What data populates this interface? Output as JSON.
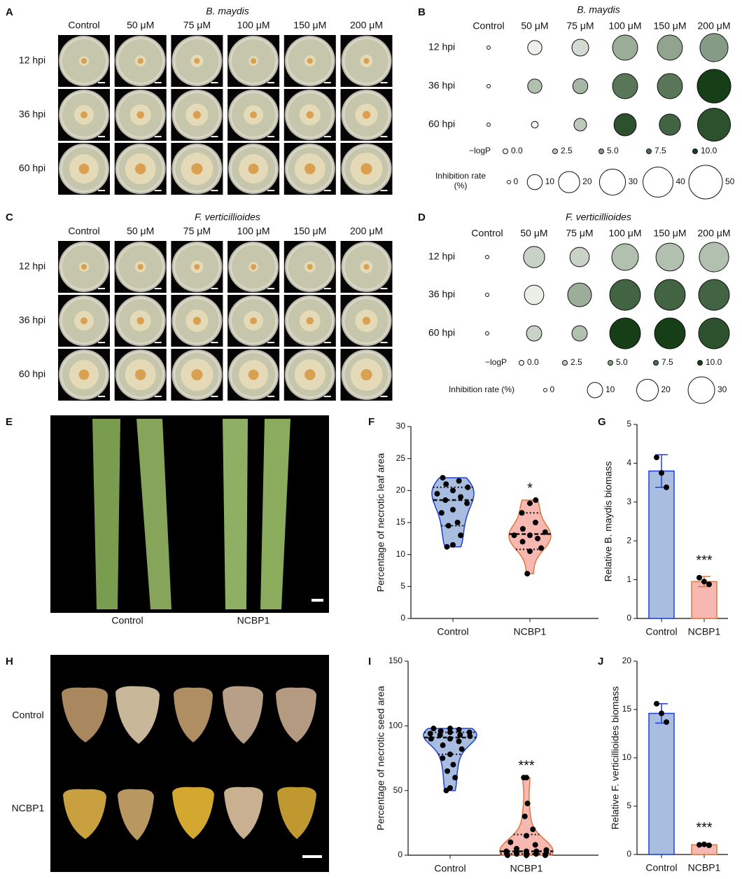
{
  "panel_labels": [
    "A",
    "B",
    "C",
    "D",
    "E",
    "F",
    "G",
    "H",
    "I",
    "J"
  ],
  "plates_a": {
    "title": "B. maydis",
    "columns": [
      "Control",
      "50 μM",
      "75 μM",
      "100 μM",
      "150 μM",
      "200 μM"
    ],
    "rows": [
      "12 hpi",
      "36 hpi",
      "60 hpi"
    ]
  },
  "plates_c": {
    "title": "F. verticillioides",
    "columns": [
      "Control",
      "50 μM",
      "75 μM",
      "100 μM",
      "150 μM",
      "200 μM"
    ],
    "rows": [
      "12 hpi",
      "36 hpi",
      "60 hpi"
    ]
  },
  "photo_e": {
    "labels": [
      "Control",
      "NCBP1"
    ]
  },
  "photo_h": {
    "rows": [
      "Control",
      "NCBP1"
    ]
  },
  "chart_data": [
    {
      "type": "bubble",
      "title": "B. maydis",
      "categories": [
        "Control",
        "50 μM",
        "75 μM",
        "100 μM",
        "150 μM",
        "200 μM"
      ],
      "series": [
        {
          "name": "12 hpi",
          "values": [
            0,
            0.3,
            1.5,
            4,
            4.5,
            5
          ],
          "sizes": [
            0,
            9,
            12.5,
            28,
            28,
            35
          ]
        },
        {
          "name": "36 hpi",
          "values": [
            0,
            3,
            3.5,
            7,
            7,
            10
          ],
          "sizes": [
            0,
            9,
            10,
            28,
            28,
            50
          ]
        },
        {
          "name": "60 hpi",
          "values": [
            0,
            0.2,
            2.5,
            9,
            8,
            9
          ],
          "sizes": [
            0,
            2,
            7,
            22,
            20,
            48
          ]
        }
      ],
      "color_legend": {
        "title": "−logP",
        "ticks": [
          {
            "value": 0,
            "label": "0.0"
          },
          2.5,
          {
            "value": 5,
            "label": "5.0"
          },
          7.5,
          {
            "value": 10,
            "label": "10.0"
          }
        ]
      },
      "size_legend": {
        "title": "Inhibition rate (%)",
        "ticks": [
          0,
          10,
          20,
          30,
          40,
          50
        ]
      },
      "colormap": [
        "#f5f7f2",
        "#173f17"
      ]
    },
    {
      "type": "bubble",
      "title": "F. verticillioides",
      "categories": [
        "Control",
        "50 μM",
        "75 μM",
        "100 μM",
        "150 μM",
        "200 μM"
      ],
      "series": [
        {
          "name": "12 hpi",
          "values": [
            0,
            2,
            2,
            3,
            3,
            3
          ],
          "sizes": [
            0,
            19,
            16,
            30,
            33,
            37
          ]
        },
        {
          "name": "36 hpi",
          "values": [
            0,
            0.5,
            4,
            8,
            8,
            8
          ],
          "sizes": [
            0,
            16,
            24,
            40,
            40,
            40
          ]
        },
        {
          "name": "60 hpi",
          "values": [
            0,
            2,
            3,
            10,
            10,
            9
          ],
          "sizes": [
            0,
            10,
            10,
            40,
            40,
            40
          ]
        }
      ],
      "color_legend": {
        "title": "−logP",
        "ticks": [
          {
            "value": 0,
            "label": "0.0"
          },
          2.5,
          {
            "value": 5,
            "label": "5.0"
          },
          7.5,
          {
            "value": 10,
            "label": "10.0"
          }
        ]
      },
      "size_legend": {
        "title": "Inhibition rate (%)",
        "ticks": [
          0,
          10,
          20,
          30
        ]
      },
      "colormap": [
        "#f5f7f2",
        "#173f17"
      ]
    },
    {
      "type": "violin",
      "ylabel": "Percentage of necrotic leaf area",
      "categories": [
        "Control",
        "NCBP1"
      ],
      "points": [
        [
          11.2,
          11.5,
          13,
          14.5,
          15,
          16.5,
          17,
          18,
          18.5,
          19,
          19.5,
          20,
          20.5,
          21,
          21.5,
          22
        ],
        [
          7,
          10.5,
          11,
          12,
          12.5,
          13,
          13,
          13.5,
          14,
          15,
          16.5,
          18,
          18.5
        ]
      ],
      "quartiles": [
        [
          14.5,
          18.5,
          20.5
        ],
        [
          10.8,
          13.2,
          16.5
        ]
      ],
      "significance": "*",
      "colors": [
        "#a8bde0",
        "#f6b8b0"
      ],
      "edge_colors": [
        "#1d3fd6",
        "#e0763f"
      ],
      "ylim": [
        0,
        30
      ],
      "yticks": [
        0,
        5,
        10,
        15,
        20,
        25,
        30
      ]
    },
    {
      "type": "bar",
      "ylabel": "Relative B. maydis biomass",
      "categories": [
        "Control",
        "NCBP1"
      ],
      "values": [
        3.8,
        0.95
      ],
      "errors": [
        0.42,
        0.13
      ],
      "points": [
        [
          4.15,
          3.75,
          3.38
        ],
        [
          1.05,
          0.95,
          0.88
        ]
      ],
      "significance": "***",
      "colors": [
        "#a8bde0",
        "#f6b8b0"
      ],
      "edge_colors": [
        "#1d3fd6",
        "#e0763f"
      ],
      "ylim": [
        0,
        5
      ],
      "yticks": [
        0,
        1,
        2,
        3,
        4,
        5
      ]
    },
    {
      "type": "violin",
      "ylabel": "Percentage of necrotic seed area",
      "categories": [
        "Control",
        "NCBP1"
      ],
      "points": [
        [
          50,
          52,
          60,
          65,
          70,
          75,
          78,
          82,
          85,
          88,
          90,
          90,
          92,
          93,
          93,
          94,
          95,
          95,
          96,
          97,
          98,
          98
        ],
        [
          0,
          0,
          0,
          1,
          1,
          1,
          2,
          2,
          2,
          3,
          3,
          3,
          4,
          5,
          8,
          10,
          15,
          20,
          30,
          40,
          60,
          60
        ]
      ],
      "quartiles": [
        [
          78,
          91,
          95
        ],
        [
          1,
          3,
          16
        ]
      ],
      "significance": "***",
      "colors": [
        "#a8bde0",
        "#f6b8b0"
      ],
      "edge_colors": [
        "#1d3fd6",
        "#e0763f"
      ],
      "ylim": [
        0,
        150
      ],
      "yticks": [
        0,
        50,
        100,
        150
      ]
    },
    {
      "type": "bar",
      "ylabel": "Relative F. verticillioides biomass",
      "categories": [
        "Control",
        "NCBP1"
      ],
      "values": [
        14.6,
        1.0
      ],
      "errors": [
        1.0,
        0.1
      ],
      "points": [
        [
          15.6,
          14.6,
          13.7
        ],
        [
          1.0,
          1.05,
          0.95
        ]
      ],
      "significance": "***",
      "colors": [
        "#a8bde0",
        "#f6b8b0"
      ],
      "edge_colors": [
        "#1d3fd6",
        "#e0763f"
      ],
      "ylim": [
        0,
        20
      ],
      "yticks": [
        0,
        5,
        10,
        15,
        20
      ]
    }
  ]
}
